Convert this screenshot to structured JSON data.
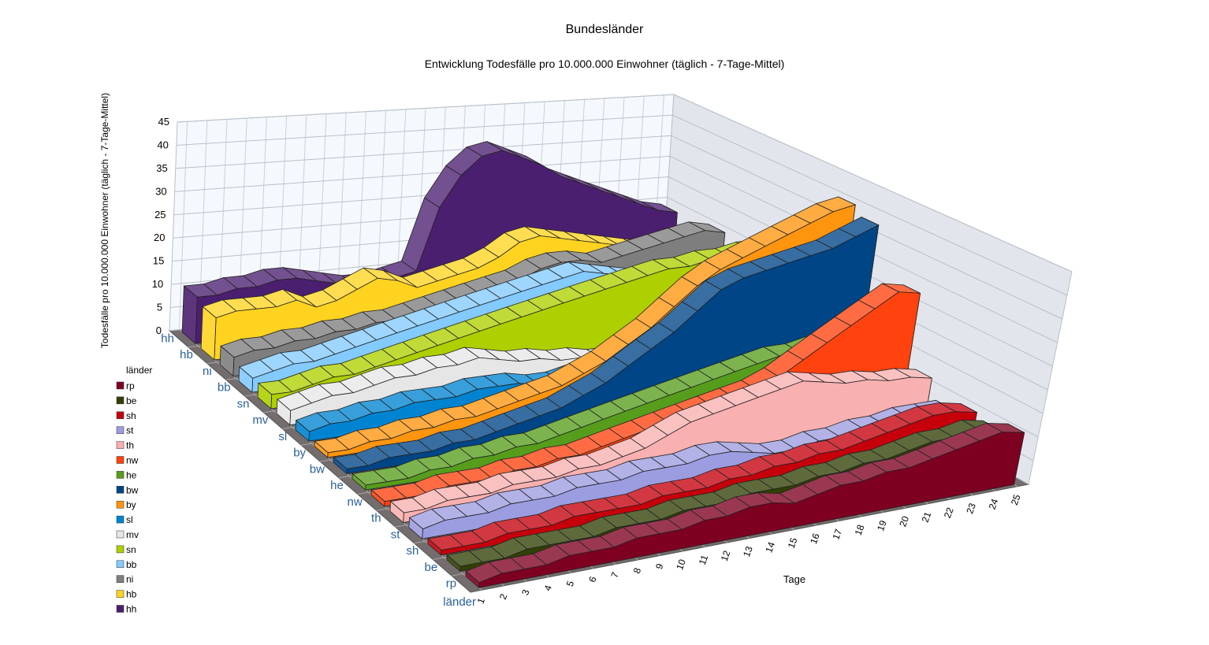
{
  "chart_data": {
    "type": "ribbon3d",
    "title": "Bundesländer",
    "subtitle": "Entwicklung Todesfälle pro 10.000.000 Einwohner (täglich - 7-Tage-Mittel)",
    "y_label": "Todesfälle pro 10.000.000 Einwohner (täglich - 7-Tage-Mittel)",
    "x_label": "Tage",
    "z_label": "länder",
    "legend_title": "länder",
    "legend": "left",
    "grid": true,
    "ylim": [
      0,
      45
    ],
    "yticks": [
      0,
      5,
      10,
      15,
      20,
      25,
      30,
      35,
      40,
      45
    ],
    "x": [
      1,
      2,
      3,
      4,
      5,
      6,
      7,
      8,
      9,
      10,
      11,
      12,
      13,
      14,
      15,
      16,
      17,
      18,
      19,
      20,
      21,
      22,
      23,
      24,
      25
    ],
    "series": [
      {
        "name": "hh",
        "color": "#4b1f6f",
        "values": [
          10,
          10,
          11,
          11,
          12,
          12,
          11,
          10,
          9,
          9,
          10,
          11,
          25,
          32,
          36,
          37,
          35,
          33,
          30,
          28,
          26,
          24,
          22,
          20,
          19
        ]
      },
      {
        "name": "hb",
        "color": "#ffd320",
        "values": [
          9,
          10,
          10,
          10,
          11,
          9,
          10,
          12,
          14,
          13,
          11,
          12,
          13,
          14,
          16,
          19,
          20,
          19,
          18,
          17,
          16,
          15,
          14,
          14,
          13
        ]
      },
      {
        "name": "ni",
        "color": "#7e7e7e",
        "values": [
          4,
          5,
          5,
          6,
          6,
          7,
          7,
          8,
          8,
          9,
          10,
          11,
          12,
          13,
          14,
          16,
          17,
          17,
          16,
          17,
          18,
          19,
          20,
          21,
          20
        ]
      },
      {
        "name": "bb",
        "color": "#83caff",
        "values": [
          3,
          4,
          5,
          5,
          6,
          7,
          8,
          9,
          10,
          11,
          12,
          13,
          14,
          15,
          16,
          17,
          18,
          17,
          16,
          15,
          15,
          16,
          16,
          17,
          17
        ]
      },
      {
        "name": "sn",
        "color": "#aecf00",
        "values": [
          3,
          3,
          4,
          5,
          5,
          6,
          7,
          8,
          9,
          10,
          11,
          12,
          13,
          14,
          15,
          16,
          17,
          18,
          19,
          20,
          20,
          21,
          21,
          22,
          22
        ]
      },
      {
        "name": "mv",
        "color": "#e6e6e6",
        "values": [
          3,
          4,
          5,
          5,
          6,
          7,
          7,
          8,
          8,
          9,
          8,
          7,
          7,
          6,
          6,
          5,
          5,
          5,
          6,
          6,
          6,
          7,
          7,
          7,
          8
        ]
      },
      {
        "name": "sl",
        "color": "#0084d1",
        "values": [
          2,
          3,
          3,
          4,
          4,
          5,
          5,
          5,
          6,
          6,
          6,
          5,
          5,
          6,
          7,
          8,
          9,
          11,
          13,
          14,
          15,
          16,
          15,
          14,
          14
        ]
      },
      {
        "name": "by",
        "color": "#ff950e",
        "values": [
          1,
          1,
          2,
          2,
          3,
          3,
          4,
          4,
          5,
          6,
          7,
          8,
          10,
          12,
          15,
          18,
          22,
          26,
          29,
          31,
          33,
          35,
          37,
          39,
          40
        ]
      },
      {
        "name": "bw",
        "color": "#004586",
        "values": [
          1,
          1,
          2,
          2,
          2,
          3,
          3,
          4,
          5,
          6,
          7,
          9,
          11,
          14,
          17,
          20,
          24,
          28,
          30,
          31,
          32,
          33,
          34,
          36,
          38
        ]
      },
      {
        "name": "he",
        "color": "#579d1c",
        "values": [
          1,
          1,
          1,
          2,
          2,
          3,
          3,
          4,
          4,
          5,
          6,
          7,
          8,
          9,
          10,
          11,
          12,
          13,
          14,
          15,
          15,
          16,
          16,
          15,
          15
        ]
      },
      {
        "name": "nw",
        "color": "#ff420e",
        "values": [
          1,
          1,
          1,
          2,
          2,
          2,
          3,
          3,
          4,
          4,
          5,
          6,
          7,
          8,
          9,
          10,
          11,
          12,
          14,
          17,
          20,
          23,
          26,
          29,
          28
        ]
      },
      {
        "name": "th",
        "color": "#f9b0b0",
        "values": [
          2,
          2,
          3,
          3,
          3,
          4,
          4,
          4,
          5,
          5,
          6,
          7,
          9,
          11,
          12,
          13,
          14,
          15,
          16,
          15,
          14,
          14,
          13,
          13,
          12
        ]
      },
      {
        "name": "st",
        "color": "#9c9ce0",
        "values": [
          2,
          3,
          3,
          3,
          4,
          4,
          4,
          5,
          5,
          5,
          6,
          6,
          6,
          7,
          7,
          6,
          5,
          5,
          6,
          6,
          7,
          7,
          8,
          8,
          8
        ]
      },
      {
        "name": "sh",
        "color": "#c5000b",
        "values": [
          1,
          1,
          1,
          2,
          2,
          2,
          3,
          3,
          3,
          3,
          4,
          4,
          4,
          5,
          5,
          6,
          6,
          7,
          7,
          8,
          9,
          10,
          11,
          11,
          10
        ]
      },
      {
        "name": "be",
        "color": "#314004",
        "values": [
          1,
          1,
          1,
          2,
          2,
          2,
          2,
          3,
          3,
          3,
          4,
          4,
          4,
          5,
          5,
          5,
          6,
          6,
          7,
          7,
          8,
          9,
          9,
          10,
          9
        ]
      },
      {
        "name": "rp",
        "color": "#7e0021",
        "values": [
          1,
          2,
          2,
          2,
          3,
          3,
          3,
          4,
          4,
          4,
          5,
          5,
          6,
          6,
          5,
          6,
          7,
          7,
          8,
          8,
          9,
          10,
          11,
          12,
          11
        ]
      }
    ]
  }
}
